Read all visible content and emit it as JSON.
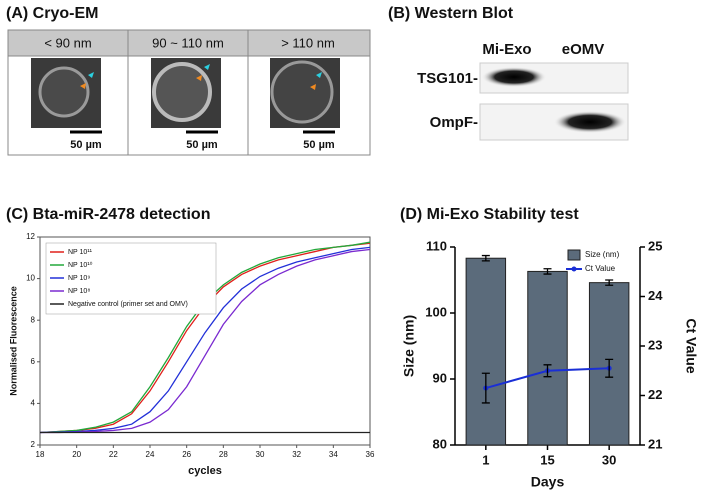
{
  "panel_a": {
    "title": "(A) Cryo-EM",
    "columns": [
      "< 90 nm",
      "90 ~ 110 nm",
      "> 110 nm"
    ],
    "scale_bar": "50 µm"
  },
  "panel_b": {
    "title": "(B) Western Blot",
    "lanes": [
      "Mi-Exo",
      "eOMV"
    ],
    "rows": [
      "TSG101-",
      "OmpF-"
    ]
  },
  "chart_data": [
    {
      "type": "line",
      "title": "(C) Bta-miR-2478 detection",
      "x_label": "cycles",
      "y_label": "Normalised Fluorescence",
      "x": [
        18,
        19,
        20,
        21,
        22,
        23,
        24,
        25,
        26,
        27,
        28,
        29,
        30,
        31,
        32,
        33,
        34,
        35,
        36
      ],
      "xlim": [
        18,
        36
      ],
      "xticks": [
        18,
        20,
        22,
        24,
        26,
        28,
        30,
        32,
        34,
        36
      ],
      "ylim": [
        2,
        12
      ],
      "yticks": [
        2,
        4,
        6,
        8,
        10,
        12
      ],
      "series": [
        {
          "name": "NP 10¹¹",
          "color": "#e0201b",
          "values": [
            2.6,
            2.65,
            2.7,
            2.8,
            3.0,
            3.5,
            4.6,
            6.0,
            7.5,
            8.7,
            9.6,
            10.2,
            10.6,
            10.9,
            11.1,
            11.3,
            11.5,
            11.6,
            11.7
          ]
        },
        {
          "name": "NP 10¹⁰",
          "color": "#22a83a",
          "values": [
            2.6,
            2.65,
            2.7,
            2.85,
            3.1,
            3.6,
            4.8,
            6.2,
            7.7,
            8.9,
            9.7,
            10.3,
            10.7,
            11.0,
            11.2,
            11.4,
            11.5,
            11.6,
            11.75
          ]
        },
        {
          "name": "NP 10⁹",
          "color": "#2230d8",
          "values": [
            2.6,
            2.62,
            2.65,
            2.7,
            2.8,
            3.0,
            3.6,
            4.6,
            6.0,
            7.4,
            8.6,
            9.5,
            10.1,
            10.5,
            10.8,
            11.0,
            11.2,
            11.4,
            11.5
          ]
        },
        {
          "name": "NP 10⁸",
          "color": "#7a2ad0",
          "values": [
            2.6,
            2.6,
            2.62,
            2.65,
            2.7,
            2.8,
            3.1,
            3.7,
            4.8,
            6.3,
            7.8,
            8.9,
            9.7,
            10.2,
            10.6,
            10.9,
            11.1,
            11.3,
            11.4
          ]
        },
        {
          "name": "Negative control (primer set and OMV)",
          "color": "#222222",
          "values": [
            2.6,
            2.6,
            2.6,
            2.6,
            2.6,
            2.6,
            2.6,
            2.6,
            2.6,
            2.6,
            2.6,
            2.6,
            2.6,
            2.6,
            2.6,
            2.6,
            2.6,
            2.6,
            2.6
          ]
        }
      ]
    },
    {
      "type": "bar",
      "title": "(D) Mi-Exo Stability test",
      "x_label": "Days",
      "y_label": "Size (nm)",
      "y2_label": "Ct Value",
      "categories": [
        "1",
        "15",
        "30"
      ],
      "ylim": [
        80,
        110
      ],
      "yticks": [
        80,
        90,
        100,
        110
      ],
      "y2lim": [
        21,
        25
      ],
      "y2ticks": [
        21,
        22,
        23,
        24,
        25
      ],
      "series": [
        {
          "name": "Size (nm)",
          "type": "bar",
          "color": "#5b6b7b",
          "values": [
            108.3,
            106.3,
            104.6
          ],
          "errors": [
            0.4,
            0.4,
            0.4
          ]
        },
        {
          "name": "Ct Value",
          "type": "line",
          "axis": "y2",
          "color": "#1a2fd6",
          "values": [
            22.15,
            22.5,
            22.55
          ],
          "errors": [
            0.3,
            0.12,
            0.18
          ]
        }
      ]
    }
  ]
}
